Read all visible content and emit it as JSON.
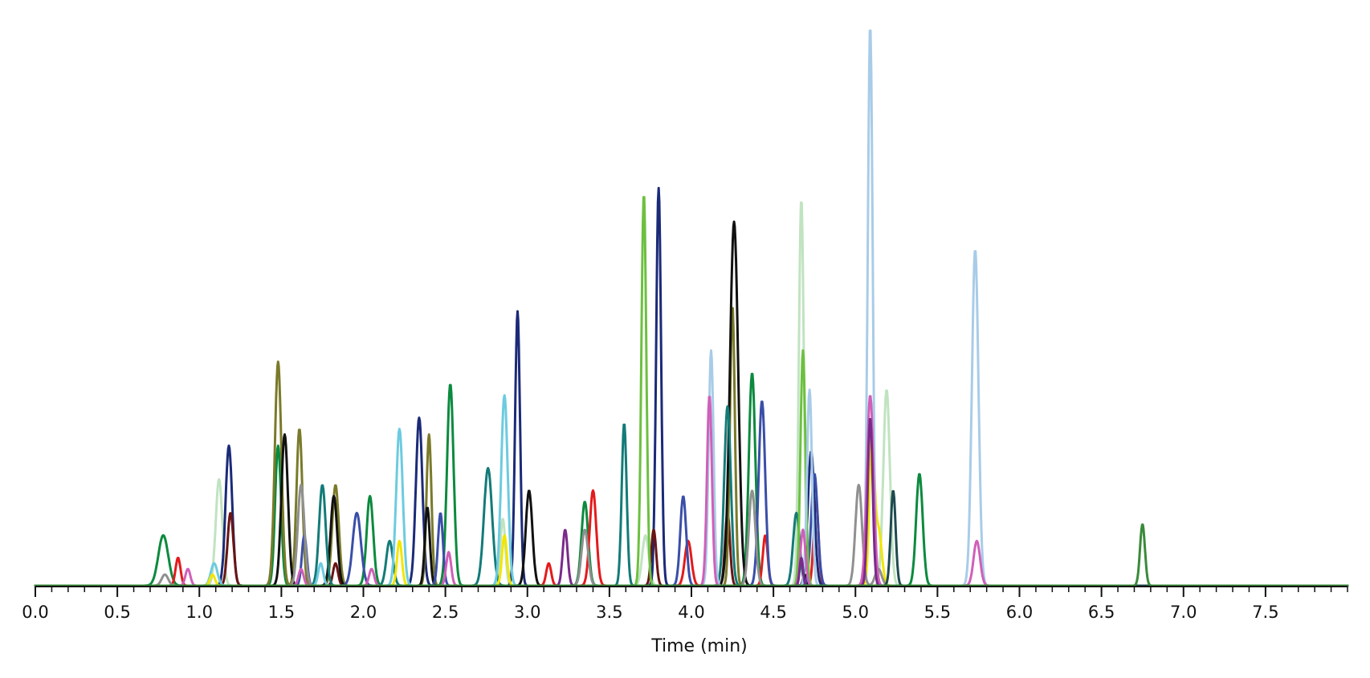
{
  "chart_data": {
    "type": "line",
    "title": "",
    "xlabel": "Time (min)",
    "ylabel": "",
    "xlim": [
      0,
      8.0
    ],
    "ylim": [
      0,
      100
    ],
    "grid": false,
    "legend": "none",
    "x_ticks": [
      {
        "value": 0.0,
        "label": "0.0"
      },
      {
        "value": 0.5,
        "label": "0.5"
      },
      {
        "value": 1.0,
        "label": "1.0"
      },
      {
        "value": 1.5,
        "label": "1.5"
      },
      {
        "value": 2.0,
        "label": "2.0"
      },
      {
        "value": 2.5,
        "label": "2.5"
      },
      {
        "value": 3.0,
        "label": "3.0"
      },
      {
        "value": 3.5,
        "label": "3.5"
      },
      {
        "value": 4.0,
        "label": "4.0"
      },
      {
        "value": 4.5,
        "label": "4.5"
      },
      {
        "value": 5.0,
        "label": "5.0"
      },
      {
        "value": 5.5,
        "label": "5.5"
      },
      {
        "value": 6.0,
        "label": "6.0"
      },
      {
        "value": 6.5,
        "label": "6.5"
      },
      {
        "value": 7.0,
        "label": "7.0"
      },
      {
        "value": 7.5,
        "label": "7.5"
      }
    ],
    "minor_tick_step": 0.1,
    "series": [
      {
        "color": "#0b8a3e",
        "peaks": [
          [
            0.78,
            9,
            0.03
          ],
          [
            1.48,
            25,
            0.018
          ],
          [
            2.04,
            16,
            0.02
          ],
          [
            2.53,
            36,
            0.02
          ],
          [
            3.35,
            15,
            0.02
          ],
          [
            4.37,
            38,
            0.02
          ],
          [
            5.39,
            20,
            0.02
          ]
        ]
      },
      {
        "color": "#e41a1c",
        "peaks": [
          [
            0.87,
            5,
            0.015
          ],
          [
            3.4,
            17,
            0.02
          ],
          [
            3.98,
            8,
            0.02
          ],
          [
            4.45,
            9,
            0.015
          ],
          [
            4.76,
            15,
            0.015
          ],
          [
            3.13,
            4,
            0.015
          ]
        ]
      },
      {
        "color": "#c0e3c0",
        "peaks": [
          [
            1.12,
            19,
            0.02
          ],
          [
            4.67,
            69,
            0.015
          ],
          [
            5.19,
            35,
            0.02
          ],
          [
            2.85,
            12,
            0.015
          ],
          [
            3.72,
            9,
            0.02
          ]
        ]
      },
      {
        "color": "#1b2a78",
        "peaks": [
          [
            1.18,
            25,
            0.02
          ],
          [
            2.34,
            30,
            0.02
          ],
          [
            2.94,
            49,
            0.015
          ],
          [
            3.8,
            71,
            0.015
          ],
          [
            4.73,
            24,
            0.02
          ]
        ]
      },
      {
        "color": "#6a1414",
        "peaks": [
          [
            1.19,
            13,
            0.018
          ],
          [
            1.83,
            4,
            0.015
          ],
          [
            3.77,
            10,
            0.015
          ],
          [
            4.22,
            13,
            0.015
          ]
        ]
      },
      {
        "color": "#7a7a2a",
        "peaks": [
          [
            1.48,
            40,
            0.02
          ],
          [
            1.61,
            28,
            0.018
          ],
          [
            1.83,
            18,
            0.02
          ],
          [
            2.4,
            27,
            0.015
          ],
          [
            4.25,
            50,
            0.015
          ]
        ]
      },
      {
        "color": "#111111",
        "peaks": [
          [
            1.52,
            27,
            0.02
          ],
          [
            1.82,
            16,
            0.02
          ],
          [
            2.39,
            14,
            0.015
          ],
          [
            3.01,
            17,
            0.02
          ],
          [
            4.26,
            65,
            0.025
          ],
          [
            4.69,
            2,
            0.01
          ]
        ]
      },
      {
        "color": "#3a4ea8",
        "peaks": [
          [
            1.96,
            13,
            0.025
          ],
          [
            2.47,
            13,
            0.015
          ],
          [
            3.95,
            16,
            0.018
          ],
          [
            4.43,
            33,
            0.02
          ],
          [
            4.75,
            20,
            0.02
          ],
          [
            1.64,
            9,
            0.015
          ]
        ]
      },
      {
        "color": "#137b78",
        "peaks": [
          [
            1.75,
            18,
            0.02
          ],
          [
            2.16,
            8,
            0.02
          ],
          [
            2.76,
            21,
            0.025
          ],
          [
            3.59,
            29,
            0.015
          ],
          [
            4.22,
            32,
            0.02
          ],
          [
            4.64,
            13,
            0.02
          ]
        ]
      },
      {
        "color": "#6ccbe0",
        "peaks": [
          [
            1.09,
            4,
            0.02
          ],
          [
            2.22,
            28,
            0.02
          ],
          [
            2.86,
            34,
            0.02
          ],
          [
            1.74,
            4,
            0.015
          ]
        ]
      },
      {
        "color": "#f2e600",
        "peaks": [
          [
            1.08,
            2,
            0.015
          ],
          [
            2.22,
            8,
            0.015
          ],
          [
            2.86,
            9,
            0.015
          ],
          [
            5.1,
            27,
            0.015
          ],
          [
            5.14,
            10,
            0.02
          ]
        ]
      },
      {
        "color": "#6cc040",
        "peaks": [
          [
            3.71,
            70,
            0.015
          ],
          [
            4.68,
            42,
            0.015
          ]
        ]
      },
      {
        "color": "#a8cce8",
        "peaks": [
          [
            4.12,
            42,
            0.015
          ],
          [
            4.72,
            35,
            0.015
          ],
          [
            5.09,
            100,
            0.015
          ],
          [
            5.73,
            60,
            0.02
          ]
        ]
      },
      {
        "color": "#909090",
        "peaks": [
          [
            0.79,
            2,
            0.02
          ],
          [
            1.62,
            18,
            0.02
          ],
          [
            3.35,
            10,
            0.02
          ],
          [
            4.37,
            17,
            0.02
          ],
          [
            5.02,
            18,
            0.02
          ],
          [
            5.14,
            3,
            0.02
          ]
        ]
      },
      {
        "color": "#d060b8",
        "peaks": [
          [
            0.93,
            3,
            0.015
          ],
          [
            1.62,
            3,
            0.015
          ],
          [
            2.05,
            3,
            0.015
          ],
          [
            2.52,
            6,
            0.015
          ],
          [
            4.11,
            34,
            0.015
          ],
          [
            4.68,
            10,
            0.015
          ],
          [
            5.09,
            34,
            0.02
          ],
          [
            5.74,
            8,
            0.02
          ]
        ]
      },
      {
        "color": "#7a2a8a",
        "peaks": [
          [
            3.23,
            10,
            0.015
          ],
          [
            4.67,
            5,
            0.01
          ],
          [
            5.09,
            30,
            0.015
          ]
        ]
      },
      {
        "color": "#1e4a50",
        "peaks": [
          [
            5.23,
            17,
            0.015
          ]
        ]
      },
      {
        "color": "#3a8a3a",
        "peaks": [
          [
            6.75,
            11,
            0.015
          ]
        ]
      }
    ]
  }
}
